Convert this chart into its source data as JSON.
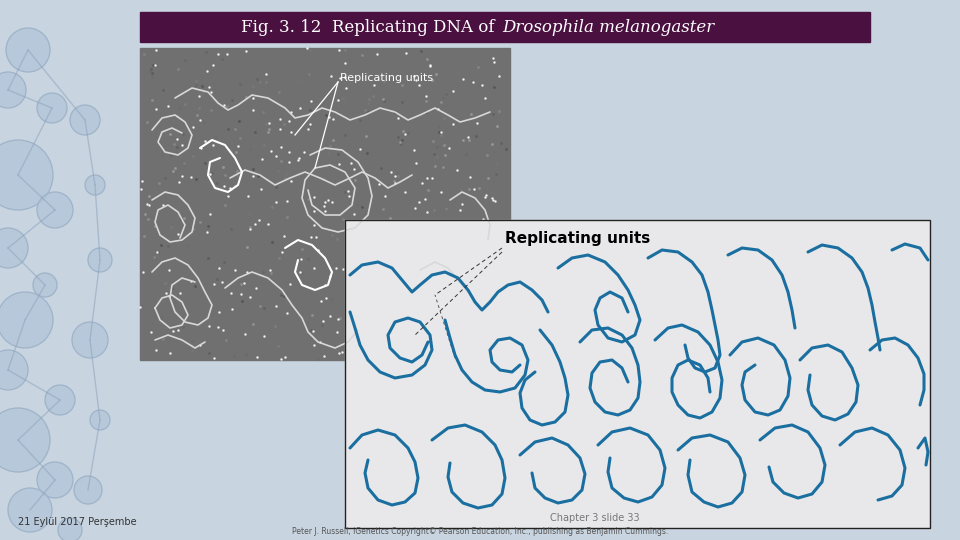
{
  "title_bg_color": "#4a1040",
  "title_text_color": "#ffffff",
  "slide_bg": "#c8d4e0",
  "diagram_bg": "#e8e8ea",
  "diagram_border": "#222222",
  "blue_line_color": "#1a6fa0",
  "photo_bg": "#6a6a6a",
  "bottom_left_text": "21 Eylül 2017 Perşembe",
  "bottom_center_text": "Chapter 3 slide 33",
  "bottom_small_text": "Peter J. Russell, iGenetics Copyright© Pearson Education, Inc., publishing as Benjamin Cummings.",
  "replicating_units_label": "Replicating units",
  "title_normal": "Fig. 3. 12  Replicating DNA of ",
  "title_italic": "Drosophila melanogaster"
}
